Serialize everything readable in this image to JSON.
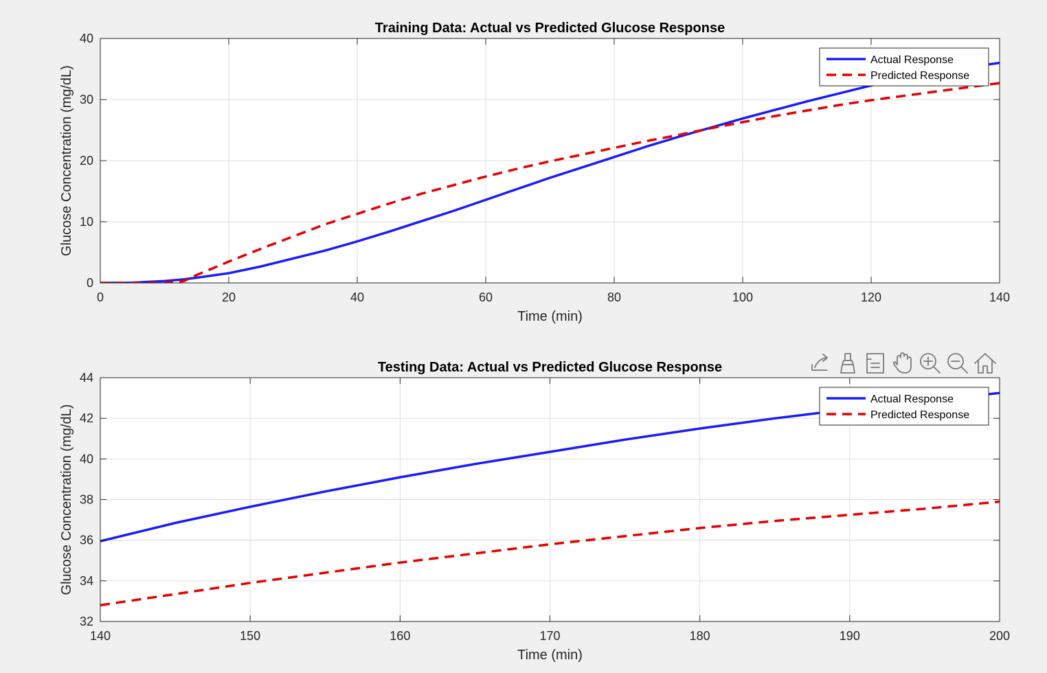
{
  "toolbar": {
    "icons": [
      "export-icon",
      "brush-icon",
      "data-tips-icon",
      "pan-hand-icon",
      "zoom-in-icon",
      "zoom-out-icon",
      "home-icon"
    ]
  },
  "chart_data": [
    {
      "type": "line",
      "title": "Training Data: Actual vs Predicted Glucose Response",
      "xlabel": "Time (min)",
      "ylabel": "Glucose Concentration (mg/dL)",
      "xlim": [
        0,
        140
      ],
      "ylim": [
        0,
        40
      ],
      "xticks": [
        0,
        20,
        40,
        60,
        80,
        100,
        120,
        140
      ],
      "yticks": [
        0,
        10,
        20,
        30,
        40
      ],
      "grid": true,
      "legend_position": "top-right",
      "x": [
        0,
        5,
        10,
        13,
        15,
        20,
        25,
        30,
        35,
        40,
        45,
        50,
        55,
        60,
        65,
        70,
        75,
        80,
        85,
        90,
        95,
        100,
        105,
        110,
        115,
        120,
        125,
        130,
        135,
        140
      ],
      "series": [
        {
          "name": "Actual Response",
          "color": "#1a1aff",
          "style": "solid",
          "values": [
            0,
            0.05,
            0.3,
            0.6,
            0.85,
            1.6,
            2.7,
            4.0,
            5.3,
            6.8,
            8.4,
            10.1,
            11.8,
            13.6,
            15.4,
            17.2,
            18.9,
            20.6,
            22.3,
            23.9,
            25.4,
            26.9,
            28.3,
            29.7,
            31.0,
            32.3,
            33.5,
            34.5,
            35.3,
            36.0
          ]
        },
        {
          "name": "Predicted Response",
          "color": "#e60000",
          "style": "dashed",
          "values": [
            0,
            0,
            0,
            0.3,
            1.3,
            3.5,
            5.6,
            7.6,
            9.6,
            11.3,
            13.0,
            14.6,
            16.0,
            17.4,
            18.7,
            19.9,
            21.0,
            22.1,
            23.2,
            24.2,
            25.3,
            26.3,
            27.3,
            28.2,
            29.1,
            29.9,
            30.6,
            31.3,
            32.0,
            32.7
          ]
        }
      ]
    },
    {
      "type": "line",
      "title": "Testing Data: Actual vs Predicted Glucose Response",
      "xlabel": "Time (min)",
      "ylabel": "Glucose Concentration (mg/dL)",
      "xlim": [
        140,
        200
      ],
      "ylim": [
        32,
        44
      ],
      "xticks": [
        140,
        150,
        160,
        170,
        180,
        190,
        200
      ],
      "yticks": [
        32,
        34,
        36,
        38,
        40,
        42,
        44
      ],
      "grid": true,
      "legend_position": "top-right",
      "x": [
        140,
        145,
        150,
        155,
        160,
        165,
        170,
        175,
        180,
        185,
        190,
        195,
        200
      ],
      "series": [
        {
          "name": "Actual Response",
          "color": "#1a1aff",
          "style": "solid",
          "values": [
            35.95,
            36.85,
            37.65,
            38.4,
            39.1,
            39.75,
            40.35,
            40.95,
            41.5,
            42.0,
            42.45,
            42.85,
            43.25
          ]
        },
        {
          "name": "Predicted Response",
          "color": "#e60000",
          "style": "dashed",
          "values": [
            32.8,
            33.35,
            33.9,
            34.4,
            34.9,
            35.35,
            35.8,
            36.2,
            36.6,
            36.95,
            37.25,
            37.55,
            37.9
          ]
        }
      ]
    }
  ]
}
